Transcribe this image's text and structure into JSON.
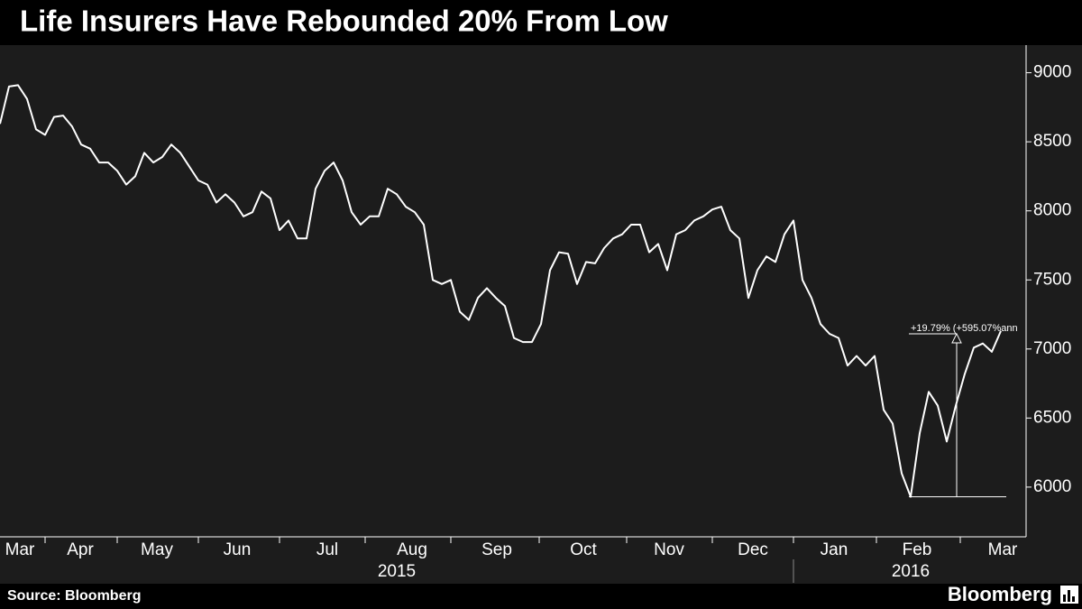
{
  "chart_data": {
    "type": "line",
    "title": "Life Insurers Have Rebounded 20% From Low",
    "source": "Source: Bloomberg",
    "brand": "Bloomberg",
    "color": "#ffffff",
    "values": [
      8630,
      8900,
      8910,
      8810,
      8590,
      8550,
      8680,
      8690,
      8610,
      8480,
      8450,
      8350,
      8350,
      8290,
      8190,
      8250,
      8420,
      8350,
      8390,
      8480,
      8420,
      8320,
      8220,
      8190,
      8060,
      8120,
      8060,
      7960,
      7990,
      8140,
      8090,
      7860,
      7930,
      7800,
      7800,
      8160,
      8290,
      8350,
      8220,
      7990,
      7900,
      7960,
      7960,
      8160,
      8120,
      8030,
      7990,
      7900,
      7500,
      7470,
      7500,
      7270,
      7210,
      7370,
      7440,
      7370,
      7310,
      7080,
      7050,
      7050,
      7180,
      7570,
      7700,
      7690,
      7470,
      7630,
      7620,
      7730,
      7800,
      7830,
      7900,
      7900,
      7700,
      7760,
      7570,
      7830,
      7860,
      7930,
      7960,
      8010,
      8030,
      7860,
      7800,
      7370,
      7570,
      7670,
      7630,
      7830,
      7930,
      7500,
      7370,
      7180,
      7110,
      7080,
      6880,
      6950,
      6880,
      6950,
      6560,
      6460,
      6100,
      5930,
      6390,
      6690,
      6590,
      6330,
      6590,
      6820,
      7010,
      7040,
      6980,
      7130
    ],
    "xlim": [
      0,
      113.8
    ],
    "ylim": [
      5640,
      9200
    ],
    "yticks": [
      {
        "value": 6000,
        "label": "6000"
      },
      {
        "value": 6500,
        "label": "6500"
      },
      {
        "value": 7000,
        "label": "7000"
      },
      {
        "value": 7500,
        "label": "7500"
      },
      {
        "value": 8000,
        "label": "8000"
      },
      {
        "value": 8500,
        "label": "8500"
      },
      {
        "value": 9000,
        "label": "9000"
      }
    ],
    "month_separators": [
      5,
      13,
      22,
      31,
      40.5,
      50,
      59.8,
      69.5,
      79,
      88,
      97.2,
      106.5
    ],
    "month_labels": [
      {
        "value": 2.2,
        "label": "Mar"
      },
      {
        "value": 8.9,
        "label": "Apr"
      },
      {
        "value": 17.4,
        "label": "May"
      },
      {
        "value": 26.3,
        "label": "Jun"
      },
      {
        "value": 36.3,
        "label": "Jul"
      },
      {
        "value": 45.7,
        "label": "Aug"
      },
      {
        "value": 55.1,
        "label": "Sep"
      },
      {
        "value": 64.7,
        "label": "Oct"
      },
      {
        "value": 74.2,
        "label": "Nov"
      },
      {
        "value": 83.5,
        "label": "Dec"
      },
      {
        "value": 92.5,
        "label": "Jan"
      },
      {
        "value": 101.7,
        "label": "Feb"
      },
      {
        "value": 111.2,
        "label": "Mar"
      }
    ],
    "year_separators": [
      88
    ],
    "year_labels": [
      {
        "value": 44,
        "label": "2015"
      },
      {
        "value": 101,
        "label": "2016"
      }
    ],
    "annotation": {
      "text": "+19.79% (+595.07%ann",
      "from": 5930,
      "to": 7110
    }
  }
}
